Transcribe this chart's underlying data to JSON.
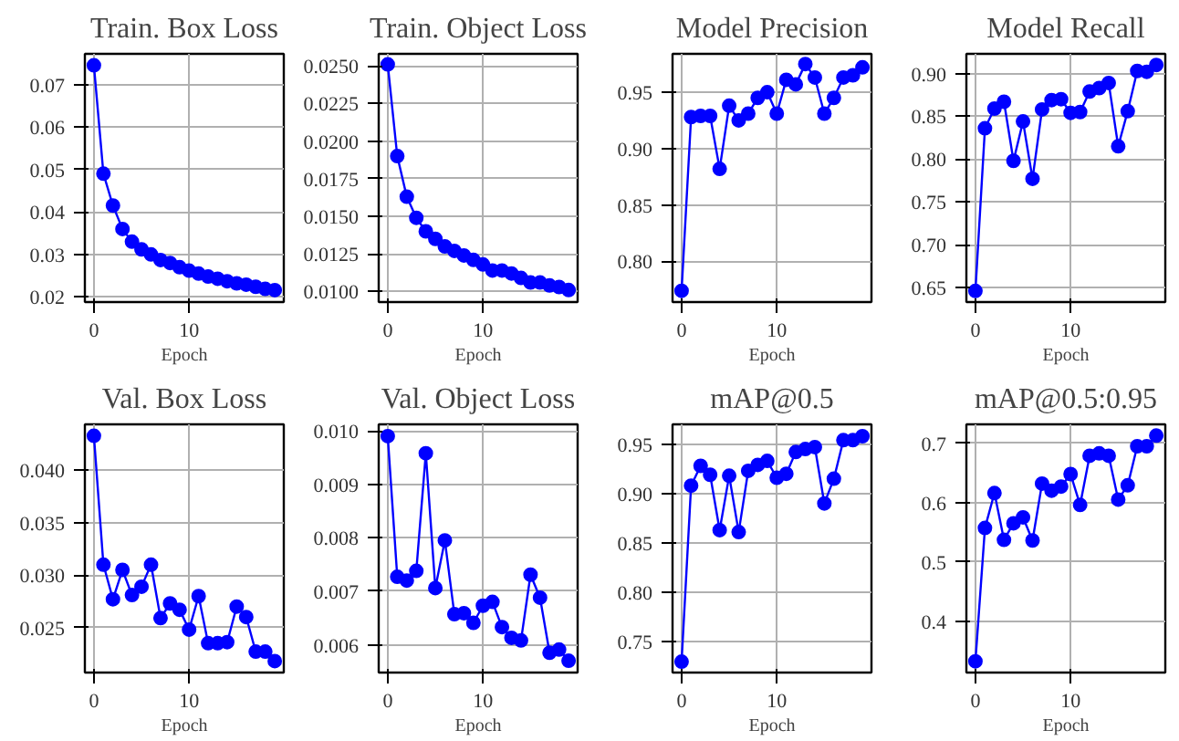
{
  "chart_data": [
    {
      "type": "line",
      "title": "Train. Box Loss",
      "xlabel": "Epoch",
      "x": [
        0,
        1,
        2,
        3,
        4,
        5,
        6,
        7,
        8,
        9,
        10,
        11,
        12,
        13,
        14,
        15,
        16,
        17,
        18,
        19
      ],
      "xlim": [
        -0.95,
        19.95
      ],
      "xticks": [
        0,
        10
      ],
      "ylim": [
        0.0188,
        0.0772
      ],
      "yticks": [
        {
          "value": 0.02,
          "label": "0.02"
        },
        {
          "value": 0.03,
          "label": "0.03"
        },
        {
          "value": 0.04,
          "label": "0.04"
        },
        {
          "value": 0.05,
          "label": "0.05"
        },
        {
          "value": 0.06,
          "label": "0.06"
        },
        {
          "value": 0.07,
          "label": "0.07"
        }
      ],
      "grid": true,
      "marker": "circle",
      "line_style": "solid",
      "series": [
        {
          "color": "#0000ff",
          "values": [
            0.0745,
            0.049,
            0.0415,
            0.036,
            0.033,
            0.0312,
            0.03,
            0.0287,
            0.028,
            0.027,
            0.0262,
            0.0255,
            0.0248,
            0.0243,
            0.0237,
            0.0232,
            0.0229,
            0.0224,
            0.0219,
            0.0216
          ]
        }
      ]
    },
    {
      "type": "line",
      "title": "Train. Object Loss",
      "xlabel": "Epoch",
      "x": [
        0,
        1,
        2,
        3,
        4,
        5,
        6,
        7,
        8,
        9,
        10,
        11,
        12,
        13,
        14,
        15,
        16,
        17,
        18,
        19
      ],
      "xlim": [
        -0.95,
        19.95
      ],
      "xticks": [
        0,
        10
      ],
      "ylim": [
        0.0093,
        0.0258
      ],
      "yticks": [
        {
          "value": 0.01,
          "label": "0.0100"
        },
        {
          "value": 0.0125,
          "label": "0.0125"
        },
        {
          "value": 0.015,
          "label": "0.0150"
        },
        {
          "value": 0.0175,
          "label": "0.0175"
        },
        {
          "value": 0.02,
          "label": "0.0200"
        },
        {
          "value": 0.0225,
          "label": "0.0225"
        },
        {
          "value": 0.025,
          "label": "0.0250"
        }
      ],
      "grid": true,
      "marker": "circle",
      "line_style": "solid",
      "series": [
        {
          "color": "#0000ff",
          "values": [
            0.0251,
            0.019,
            0.0163,
            0.0149,
            0.014,
            0.0135,
            0.013,
            0.0127,
            0.0124,
            0.0121,
            0.0118,
            0.0114,
            0.0114,
            0.0112,
            0.0109,
            0.0106,
            0.0106,
            0.0104,
            0.0103,
            0.0101
          ]
        }
      ]
    },
    {
      "type": "line",
      "title": "Model Precision",
      "xlabel": "Epoch",
      "x": [
        0,
        1,
        2,
        3,
        4,
        5,
        6,
        7,
        8,
        9,
        10,
        11,
        12,
        13,
        14,
        15,
        16,
        17,
        18,
        19
      ],
      "xlim": [
        -0.95,
        19.95
      ],
      "xticks": [
        0,
        10
      ],
      "ylim": [
        0.764,
        0.984
      ],
      "yticks": [
        {
          "value": 0.8,
          "label": "0.80"
        },
        {
          "value": 0.85,
          "label": "0.85"
        },
        {
          "value": 0.9,
          "label": "0.90"
        },
        {
          "value": 0.95,
          "label": "0.95"
        }
      ],
      "grid": true,
      "marker": "circle",
      "line_style": "solid",
      "series": [
        {
          "color": "#0000ff",
          "values": [
            0.774,
            0.928,
            0.929,
            0.929,
            0.882,
            0.938,
            0.925,
            0.931,
            0.945,
            0.95,
            0.931,
            0.961,
            0.957,
            0.975,
            0.963,
            0.931,
            0.945,
            0.963,
            0.965,
            0.972
          ]
        }
      ]
    },
    {
      "type": "line",
      "title": "Model Recall",
      "xlabel": "Epoch",
      "x": [
        0,
        1,
        2,
        3,
        4,
        5,
        6,
        7,
        8,
        9,
        10,
        11,
        12,
        13,
        14,
        15,
        16,
        17,
        18,
        19
      ],
      "xlim": [
        -0.95,
        19.95
      ],
      "xticks": [
        0,
        10
      ],
      "ylim": [
        0.633,
        0.923
      ],
      "yticks": [
        {
          "value": 0.65,
          "label": "0.65"
        },
        {
          "value": 0.7,
          "label": "0.70"
        },
        {
          "value": 0.75,
          "label": "0.75"
        },
        {
          "value": 0.8,
          "label": "0.80"
        },
        {
          "value": 0.85,
          "label": "0.85"
        },
        {
          "value": 0.9,
          "label": "0.90"
        }
      ],
      "grid": true,
      "marker": "circle",
      "line_style": "solid",
      "series": [
        {
          "color": "#0000ff",
          "values": [
            0.646,
            0.836,
            0.859,
            0.867,
            0.798,
            0.844,
            0.777,
            0.858,
            0.869,
            0.87,
            0.854,
            0.855,
            0.879,
            0.883,
            0.889,
            0.815,
            0.856,
            0.903,
            0.902,
            0.91
          ]
        }
      ]
    },
    {
      "type": "line",
      "title": "Val. Box Loss",
      "xlabel": "Epoch",
      "x": [
        0,
        1,
        2,
        3,
        4,
        5,
        6,
        7,
        8,
        9,
        10,
        11,
        12,
        13,
        14,
        15,
        16,
        17,
        18,
        19
      ],
      "xlim": [
        -0.95,
        19.95
      ],
      "xticks": [
        0,
        10
      ],
      "ylim": [
        0.0207,
        0.0444
      ],
      "yticks": [
        {
          "value": 0.025,
          "label": "0.025"
        },
        {
          "value": 0.03,
          "label": "0.030"
        },
        {
          "value": 0.035,
          "label": "0.035"
        },
        {
          "value": 0.04,
          "label": "0.040"
        }
      ],
      "grid": true,
      "marker": "circle",
      "line_style": "solid",
      "series": [
        {
          "color": "#0000ff",
          "values": [
            0.0433,
            0.031,
            0.0277,
            0.0305,
            0.0281,
            0.0289,
            0.031,
            0.0259,
            0.0273,
            0.0267,
            0.0248,
            0.028,
            0.0235,
            0.0235,
            0.0236,
            0.027,
            0.026,
            0.0227,
            0.0227,
            0.0218
          ]
        }
      ]
    },
    {
      "type": "line",
      "title": "Val. Object Loss",
      "xlabel": "Epoch",
      "x": [
        0,
        1,
        2,
        3,
        4,
        5,
        6,
        7,
        8,
        9,
        10,
        11,
        12,
        13,
        14,
        15,
        16,
        17,
        18,
        19
      ],
      "xlim": [
        -0.95,
        19.95
      ],
      "xticks": [
        0,
        10
      ],
      "ylim": [
        0.00548,
        0.01012
      ],
      "yticks": [
        {
          "value": 0.006,
          "label": "0.006"
        },
        {
          "value": 0.007,
          "label": "0.007"
        },
        {
          "value": 0.008,
          "label": "0.008"
        },
        {
          "value": 0.009,
          "label": "0.009"
        },
        {
          "value": 0.01,
          "label": "0.010"
        }
      ],
      "grid": true,
      "marker": "circle",
      "line_style": "solid",
      "series": [
        {
          "color": "#0000ff",
          "values": [
            0.0099,
            0.00727,
            0.0072,
            0.00738,
            0.00958,
            0.00706,
            0.00795,
            0.00657,
            0.00659,
            0.00641,
            0.00673,
            0.0068,
            0.00633,
            0.00613,
            0.00608,
            0.00731,
            0.00688,
            0.00585,
            0.00591,
            0.0057
          ]
        }
      ]
    },
    {
      "type": "line",
      "title": "mAP@0.5",
      "xlabel": "Epoch",
      "x": [
        0,
        1,
        2,
        3,
        4,
        5,
        6,
        7,
        8,
        9,
        10,
        11,
        12,
        13,
        14,
        15,
        16,
        17,
        18,
        19
      ],
      "xlim": [
        -0.95,
        19.95
      ],
      "xticks": [
        0,
        10
      ],
      "ylim": [
        0.719,
        0.97
      ],
      "yticks": [
        {
          "value": 0.75,
          "label": "0.75"
        },
        {
          "value": 0.8,
          "label": "0.80"
        },
        {
          "value": 0.85,
          "label": "0.85"
        },
        {
          "value": 0.9,
          "label": "0.90"
        },
        {
          "value": 0.95,
          "label": "0.95"
        }
      ],
      "grid": true,
      "marker": "circle",
      "line_style": "solid",
      "series": [
        {
          "color": "#0000ff",
          "values": [
            0.73,
            0.908,
            0.928,
            0.919,
            0.863,
            0.918,
            0.861,
            0.923,
            0.929,
            0.933,
            0.916,
            0.92,
            0.942,
            0.945,
            0.947,
            0.89,
            0.915,
            0.954,
            0.954,
            0.958
          ]
        }
      ]
    },
    {
      "type": "line",
      "title": "mAP@0.5:0.95",
      "xlabel": "Epoch",
      "x": [
        0,
        1,
        2,
        3,
        4,
        5,
        6,
        7,
        8,
        9,
        10,
        11,
        12,
        13,
        14,
        15,
        16,
        17,
        18,
        19
      ],
      "xlim": [
        -0.95,
        19.95
      ],
      "xticks": [
        0,
        10
      ],
      "ylim": [
        0.313,
        0.732
      ],
      "yticks": [
        0.4,
        0.5,
        0.6,
        0.7
      ],
      "grid": true,
      "marker": "circle",
      "line_style": "solid",
      "series": [
        {
          "color": "#0000ff",
          "values": [
            0.332,
            0.557,
            0.616,
            0.537,
            0.565,
            0.575,
            0.536,
            0.632,
            0.62,
            0.627,
            0.648,
            0.596,
            0.679,
            0.683,
            0.679,
            0.605,
            0.629,
            0.695,
            0.695,
            0.713
          ]
        }
      ]
    }
  ]
}
